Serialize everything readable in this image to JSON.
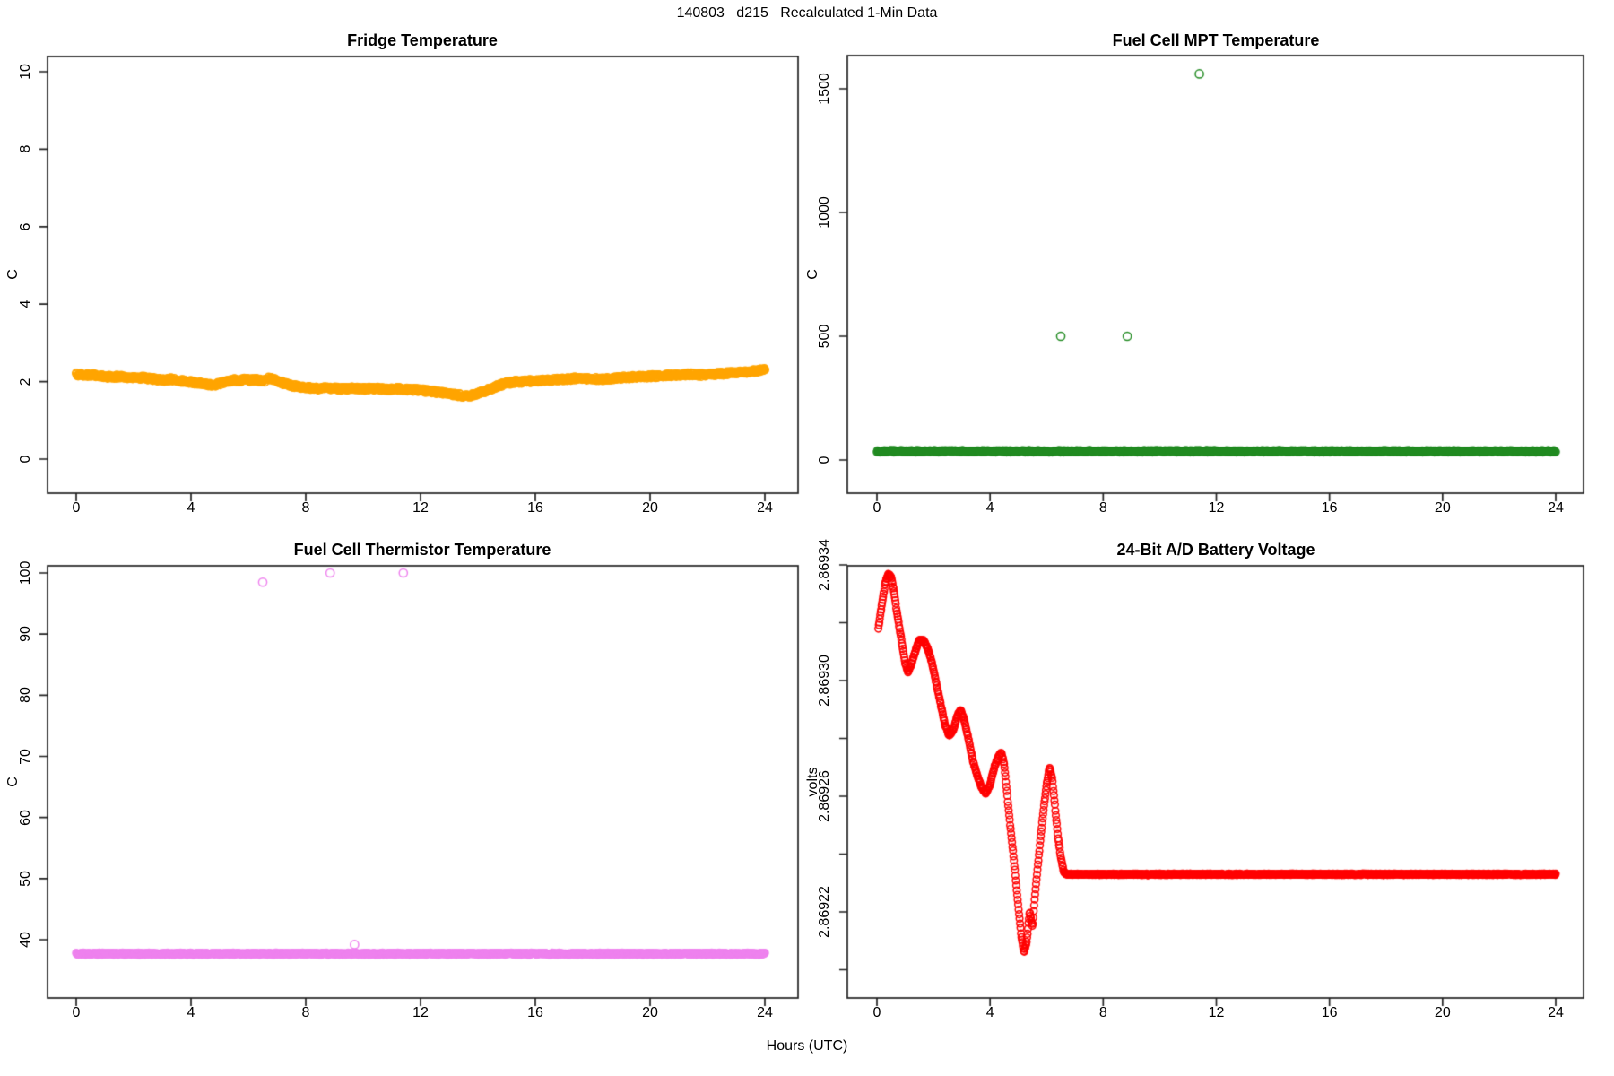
{
  "header": {
    "title": "140803   d215   Recalculated 1-Min Data"
  },
  "footer": {
    "xlabel": "Hours (UTC)"
  },
  "chart_data": [
    {
      "type": "scatter",
      "title": "Fridge Temperature",
      "xlabel": "",
      "ylabel": "C",
      "xlim": [
        0,
        24
      ],
      "ylim": [
        0,
        10
      ],
      "xticks": [
        0,
        4,
        8,
        12,
        16,
        20,
        24
      ],
      "yticks": [
        0,
        2,
        4,
        6,
        8,
        10
      ],
      "grid": false,
      "legend": "none",
      "marker": "open-circle",
      "color": "#FFA500",
      "series": [
        {
          "name": "fridge_temp_C",
          "points": [
            [
              0,
              2.18
            ],
            [
              0.3,
              2.17
            ],
            [
              0.6,
              2.16
            ],
            [
              0.9,
              2.14
            ],
            [
              1.2,
              2.12
            ],
            [
              1.5,
              2.13
            ],
            [
              1.8,
              2.1
            ],
            [
              2.1,
              2.09
            ],
            [
              2.4,
              2.1
            ],
            [
              2.7,
              2.06
            ],
            [
              3.0,
              2.04
            ],
            [
              3.3,
              2.06
            ],
            [
              3.6,
              2.02
            ],
            [
              3.9,
              1.99
            ],
            [
              4.2,
              1.97
            ],
            [
              4.5,
              1.93
            ],
            [
              4.8,
              1.91
            ],
            [
              5.0,
              1.95
            ],
            [
              5.2,
              2.0
            ],
            [
              5.5,
              2.04
            ],
            [
              5.7,
              2.02
            ],
            [
              5.9,
              2.06
            ],
            [
              6.1,
              2.03
            ],
            [
              6.3,
              2.06
            ],
            [
              6.5,
              1.99
            ],
            [
              6.7,
              2.09
            ],
            [
              6.9,
              2.06
            ],
            [
              7.1,
              1.99
            ],
            [
              7.4,
              1.92
            ],
            [
              7.7,
              1.87
            ],
            [
              8.0,
              1.84
            ],
            [
              8.4,
              1.82
            ],
            [
              8.8,
              1.83
            ],
            [
              9.2,
              1.81
            ],
            [
              9.6,
              1.82
            ],
            [
              10.0,
              1.81
            ],
            [
              10.4,
              1.82
            ],
            [
              10.8,
              1.8
            ],
            [
              11.2,
              1.81
            ],
            [
              11.6,
              1.79
            ],
            [
              12.0,
              1.78
            ],
            [
              12.4,
              1.74
            ],
            [
              12.8,
              1.71
            ],
            [
              13.1,
              1.67
            ],
            [
              13.4,
              1.64
            ],
            [
              13.7,
              1.63
            ],
            [
              13.9,
              1.67
            ],
            [
              14.1,
              1.72
            ],
            [
              14.4,
              1.8
            ],
            [
              14.7,
              1.89
            ],
            [
              15.0,
              1.96
            ],
            [
              15.3,
              1.99
            ],
            [
              15.6,
              2.0
            ],
            [
              16.0,
              2.02
            ],
            [
              16.4,
              2.03
            ],
            [
              16.8,
              2.05
            ],
            [
              17.2,
              2.07
            ],
            [
              17.5,
              2.1
            ],
            [
              17.8,
              2.08
            ],
            [
              18.2,
              2.06
            ],
            [
              18.6,
              2.08
            ],
            [
              19.0,
              2.1
            ],
            [
              19.4,
              2.12
            ],
            [
              19.8,
              2.13
            ],
            [
              20.2,
              2.14
            ],
            [
              20.6,
              2.16
            ],
            [
              21.0,
              2.17
            ],
            [
              21.4,
              2.19
            ],
            [
              21.7,
              2.17
            ],
            [
              22.0,
              2.18
            ],
            [
              22.4,
              2.2
            ],
            [
              22.8,
              2.22
            ],
            [
              23.2,
              2.24
            ],
            [
              23.6,
              2.27
            ],
            [
              24.0,
              2.3
            ]
          ]
        }
      ],
      "outliers": []
    },
    {
      "type": "scatter",
      "title": "Fuel Cell MPT Temperature",
      "xlabel": "",
      "ylabel": "C",
      "xlim": [
        0,
        24
      ],
      "ylim": [
        0,
        1565
      ],
      "xticks": [
        0,
        4,
        8,
        12,
        16,
        20,
        24
      ],
      "yticks": [
        0,
        500,
        1000,
        1500
      ],
      "grid": false,
      "legend": "none",
      "marker": "open-circle",
      "color": "#228B22",
      "series": [
        {
          "name": "mpt_temp_C_baseline",
          "points": [
            [
              0,
              35
            ],
            [
              24,
              35
            ]
          ]
        }
      ],
      "outliers": [
        [
          6.5,
          500
        ],
        [
          8.85,
          500
        ],
        [
          11.4,
          1560
        ]
      ]
    },
    {
      "type": "scatter",
      "title": "Fuel Cell Thermistor Temperature",
      "xlabel": "",
      "ylabel": "C",
      "xlim": [
        0,
        24
      ],
      "ylim": [
        35,
        102
      ],
      "xticks": [
        0,
        4,
        8,
        12,
        16,
        20,
        24
      ],
      "yticks": [
        40,
        50,
        60,
        70,
        80,
        90,
        100
      ],
      "grid": false,
      "legend": "none",
      "marker": "open-circle",
      "color": "#EE82EE",
      "series": [
        {
          "name": "thermistor_temp_C_baseline",
          "points": [
            [
              0,
              37.7
            ],
            [
              24,
              37.7
            ]
          ]
        }
      ],
      "outliers": [
        [
          6.5,
          98.5
        ],
        [
          8.85,
          100
        ],
        [
          11.4,
          100
        ],
        [
          9.7,
          39.2
        ]
      ]
    },
    {
      "type": "scatter",
      "title": "24-Bit A/D Battery Voltage",
      "xlabel": "",
      "ylabel": "volts",
      "xlim": [
        0,
        24
      ],
      "ylim": [
        2.8692,
        2.86934
      ],
      "xticks": [
        0,
        4,
        8,
        12,
        16,
        20,
        24
      ],
      "yticks": [
        2.86922,
        2.86926,
        2.8693,
        2.86934
      ],
      "ytick_labels": [
        "2.86922",
        "2.86926",
        "2.86930",
        "2.86934"
      ],
      "yticks_minor": [
        2.8692,
        2.86924,
        2.86928,
        2.86932
      ],
      "grid": false,
      "legend": "none",
      "marker": "open-circle",
      "color": "#FF0000",
      "series": [
        {
          "name": "battery_volts",
          "points": [
            [
              0.05,
              2.869318
            ],
            [
              0.2,
              2.869328
            ],
            [
              0.3,
              2.869334
            ],
            [
              0.4,
              2.869337
            ],
            [
              0.5,
              2.869336
            ],
            [
              0.6,
              2.869331
            ],
            [
              0.7,
              2.869324
            ],
            [
              0.85,
              2.869315
            ],
            [
              1.0,
              2.869306
            ],
            [
              1.1,
              2.869303
            ],
            [
              1.2,
              2.869305
            ],
            [
              1.35,
              2.86931
            ],
            [
              1.5,
              2.869314
            ],
            [
              1.65,
              2.869314
            ],
            [
              1.8,
              2.869311
            ],
            [
              1.95,
              2.869306
            ],
            [
              2.1,
              2.869299
            ],
            [
              2.25,
              2.869292
            ],
            [
              2.4,
              2.869285
            ],
            [
              2.55,
              2.869281
            ],
            [
              2.7,
              2.869283
            ],
            [
              2.85,
              2.869288
            ],
            [
              2.95,
              2.86929
            ],
            [
              3.1,
              2.869286
            ],
            [
              3.25,
              2.869279
            ],
            [
              3.4,
              2.869272
            ],
            [
              3.55,
              2.869267
            ],
            [
              3.7,
              2.869263
            ],
            [
              3.85,
              2.869261
            ],
            [
              4.0,
              2.869264
            ],
            [
              4.15,
              2.86927
            ],
            [
              4.3,
              2.869274
            ],
            [
              4.4,
              2.869275
            ],
            [
              4.5,
              2.869271
            ],
            [
              4.6,
              2.869261
            ],
            [
              4.7,
              2.869251
            ],
            [
              4.8,
              2.869242
            ],
            [
              4.9,
              2.869232
            ],
            [
              5.0,
              2.869222
            ],
            [
              5.1,
              2.869212
            ],
            [
              5.2,
              2.869206
            ],
            [
              5.3,
              2.86921
            ],
            [
              5.4,
              2.86922
            ],
            [
              5.5,
              2.869215
            ],
            [
              5.6,
              2.869227
            ],
            [
              5.7,
              2.869237
            ],
            [
              5.8,
              2.869247
            ],
            [
              5.9,
              2.869256
            ],
            [
              6.0,
              2.869264
            ],
            [
              6.1,
              2.86927
            ],
            [
              6.2,
              2.869266
            ],
            [
              6.3,
              2.869256
            ],
            [
              6.4,
              2.869246
            ],
            [
              6.5,
              2.869239
            ],
            [
              6.6,
              2.869234
            ],
            [
              6.7,
              2.869233
            ],
            [
              24,
              2.869233
            ]
          ]
        }
      ],
      "outliers": []
    }
  ]
}
